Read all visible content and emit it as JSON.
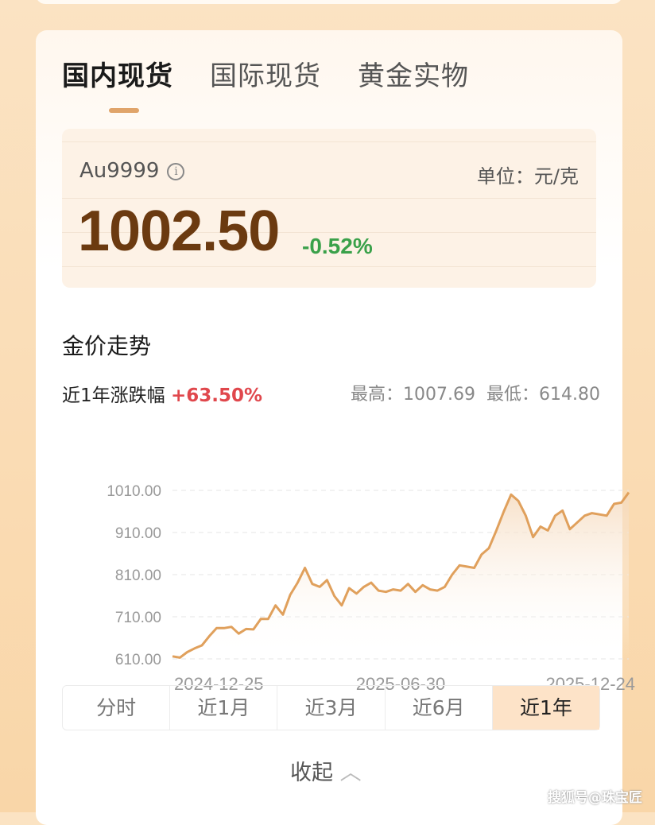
{
  "tabs": [
    {
      "label": "国内现货",
      "active": true
    },
    {
      "label": "国际现货",
      "active": false
    },
    {
      "label": "黄金实物",
      "active": false
    }
  ],
  "quote": {
    "code": "Au9999",
    "info_icon": "info-icon",
    "unit": "单位：元/克",
    "price": "1002.50",
    "change": "-0.52%",
    "change_color": "#3aa14a"
  },
  "trend": {
    "title": "金价走势",
    "change_label": "近1年涨跌幅",
    "change_value": "+63.50%",
    "high": "最高：1007.69",
    "low": "最低：614.80"
  },
  "chart_data": {
    "type": "area",
    "title": "",
    "xlabel": "",
    "ylabel": "",
    "x_tick_labels": [
      "2024-12-25",
      "2025-06-30",
      "2025-12-24"
    ],
    "y_tick_labels": [
      "1010.00",
      "910.00",
      "810.00",
      "710.00",
      "610.00"
    ],
    "ylim": [
      610,
      1010
    ],
    "grid": true,
    "line_color": "#e0a05c",
    "values": [
      616,
      613,
      626,
      635,
      642,
      664,
      683,
      683,
      686,
      670,
      681,
      680,
      705,
      705,
      737,
      715,
      762,
      791,
      826,
      788,
      781,
      797,
      759,
      737,
      778,
      765,
      781,
      791,
      772,
      769,
      775,
      772,
      788,
      769,
      785,
      775,
      772,
      781,
      810,
      832,
      829,
      826,
      858,
      873,
      915,
      959,
      1000,
      985,
      950,
      899,
      924,
      915,
      950,
      962,
      918,
      934,
      950,
      956,
      953,
      950,
      978,
      981,
      1005
    ]
  },
  "ranges": [
    {
      "label": "分时"
    },
    {
      "label": "近1月"
    },
    {
      "label": "近3月"
    },
    {
      "label": "近6月"
    },
    {
      "label": "近1年",
      "active": true
    }
  ],
  "collapse_label": "收起",
  "watermark": "搜狐号@珠宝匠"
}
